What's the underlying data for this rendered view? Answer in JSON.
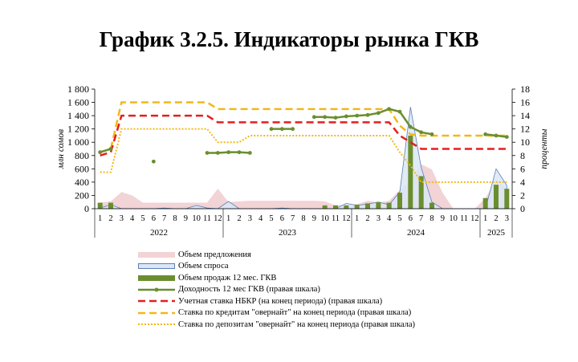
{
  "title": "График 3.2.5. Индикаторы рынка ГКВ",
  "chart_data": {
    "type": "bar",
    "left_axis": {
      "label": "млн сомов",
      "min": 0,
      "max": 1800,
      "ticks": [
        "0",
        "200",
        "400",
        "600",
        "800",
        "1 000",
        "1 200",
        "1 400",
        "1 600",
        "1 800"
      ]
    },
    "right_axis": {
      "label": "проценты",
      "min": 0,
      "max": 18,
      "ticks": [
        "0",
        "2",
        "4",
        "6",
        "8",
        "10",
        "12",
        "14",
        "16",
        "18"
      ]
    },
    "months": [
      "1",
      "2",
      "3",
      "4",
      "5",
      "6",
      "7",
      "8",
      "9",
      "10",
      "11",
      "12",
      "1",
      "2",
      "3",
      "4",
      "5",
      "6",
      "7",
      "8",
      "9",
      "10",
      "11",
      "12",
      "1",
      "2",
      "3",
      "4",
      "5",
      "6",
      "7",
      "8",
      "9",
      "10",
      "11",
      "12",
      "1",
      "2",
      "3"
    ],
    "years": [
      {
        "label": "2022",
        "start": 0,
        "end": 11
      },
      {
        "label": "2023",
        "start": 12,
        "end": 23
      },
      {
        "label": "2024",
        "start": 24,
        "end": 35
      },
      {
        "label": "2025",
        "start": 36,
        "end": 38
      }
    ],
    "series": [
      {
        "name": "Объем предложения",
        "kind": "area",
        "axis": "left",
        "color": "#f2d3d6",
        "values": [
          90,
          110,
          250,
          200,
          90,
          90,
          90,
          90,
          90,
          90,
          90,
          300,
          100,
          110,
          120,
          120,
          120,
          120,
          120,
          120,
          120,
          110,
          50,
          60,
          70,
          120,
          90,
          120,
          280,
          420,
          670,
          590,
          240,
          0,
          0,
          0,
          160,
          430,
          310
        ]
      },
      {
        "name": "Объем спроса",
        "kind": "area",
        "axis": "left",
        "color": "#dbe7f5",
        "stroke": "#5b7fb8",
        "values": [
          10,
          60,
          0,
          0,
          0,
          0,
          10,
          0,
          0,
          50,
          10,
          0,
          110,
          0,
          0,
          0,
          0,
          10,
          0,
          0,
          0,
          0,
          0,
          80,
          50,
          70,
          100,
          60,
          250,
          1530,
          620,
          100,
          0,
          0,
          0,
          0,
          0,
          600,
          350
        ]
      },
      {
        "name": "Объем продаж 12 мес. ГКВ",
        "kind": "bar",
        "axis": "left",
        "color": "#6a8e2e",
        "values": [
          90,
          90,
          0,
          0,
          0,
          0,
          0,
          0,
          0,
          0,
          0,
          0,
          0,
          0,
          0,
          0,
          0,
          0,
          0,
          0,
          0,
          50,
          50,
          50,
          60,
          80,
          100,
          90,
          240,
          1100,
          490,
          90,
          0,
          0,
          0,
          0,
          160,
          360,
          300
        ]
      },
      {
        "name": "Доходность  12 мес ГКВ  (правая шкала)",
        "kind": "line-marker",
        "axis": "right",
        "color": "#6a8e2e",
        "values": [
          8.5,
          9,
          null,
          null,
          null,
          7.1,
          null,
          null,
          null,
          null,
          8.4,
          8.4,
          8.5,
          8.5,
          8.4,
          null,
          12,
          12,
          12,
          null,
          13.8,
          13.8,
          13.7,
          13.9,
          14,
          14.1,
          14.4,
          15,
          14.6,
          12.3,
          11.5,
          11.2,
          null,
          null,
          null,
          null,
          11.2,
          11,
          10.8
        ]
      },
      {
        "name": "Учетная ставка  НБКР  (на конец периода) (правая шкала)",
        "kind": "dash",
        "axis": "right",
        "color": "#e41f1f",
        "values": [
          8,
          8.5,
          14,
          14,
          14,
          14,
          14,
          14,
          14,
          14,
          14,
          13,
          13,
          13,
          13,
          13,
          13,
          13,
          13,
          13,
          13,
          13,
          13,
          13,
          13,
          13,
          13,
          13,
          11,
          10,
          9,
          9,
          9,
          9,
          9,
          9,
          9,
          9,
          9
        ]
      },
      {
        "name": "Ставка  по кредитам \"овернайт\" на конец периода (правая шкала)",
        "kind": "dash",
        "axis": "right",
        "color": "#f2b818",
        "values": [
          8.5,
          9,
          16,
          16,
          16,
          16,
          16,
          16,
          16,
          16,
          16,
          15,
          15,
          15,
          15,
          15,
          15,
          15,
          15,
          15,
          15,
          15,
          15,
          15,
          15,
          15,
          15,
          15,
          12.5,
          11.2,
          11,
          11,
          11,
          11,
          11,
          11,
          11,
          11,
          11
        ]
      },
      {
        "name": "Ставка  по депозитам \"овернайт\" на конец периода (правая шкала)",
        "kind": "dot",
        "axis": "right",
        "color": "#f2b818",
        "values": [
          5.5,
          5.5,
          12,
          12,
          12,
          12,
          12,
          12,
          12,
          12,
          12,
          10,
          10,
          10,
          11,
          11,
          11,
          11,
          11,
          11,
          11,
          11,
          11,
          11,
          11,
          11,
          11,
          11,
          8.5,
          6.5,
          4,
          4,
          4,
          4,
          4,
          4,
          4,
          4,
          4
        ]
      }
    ]
  }
}
